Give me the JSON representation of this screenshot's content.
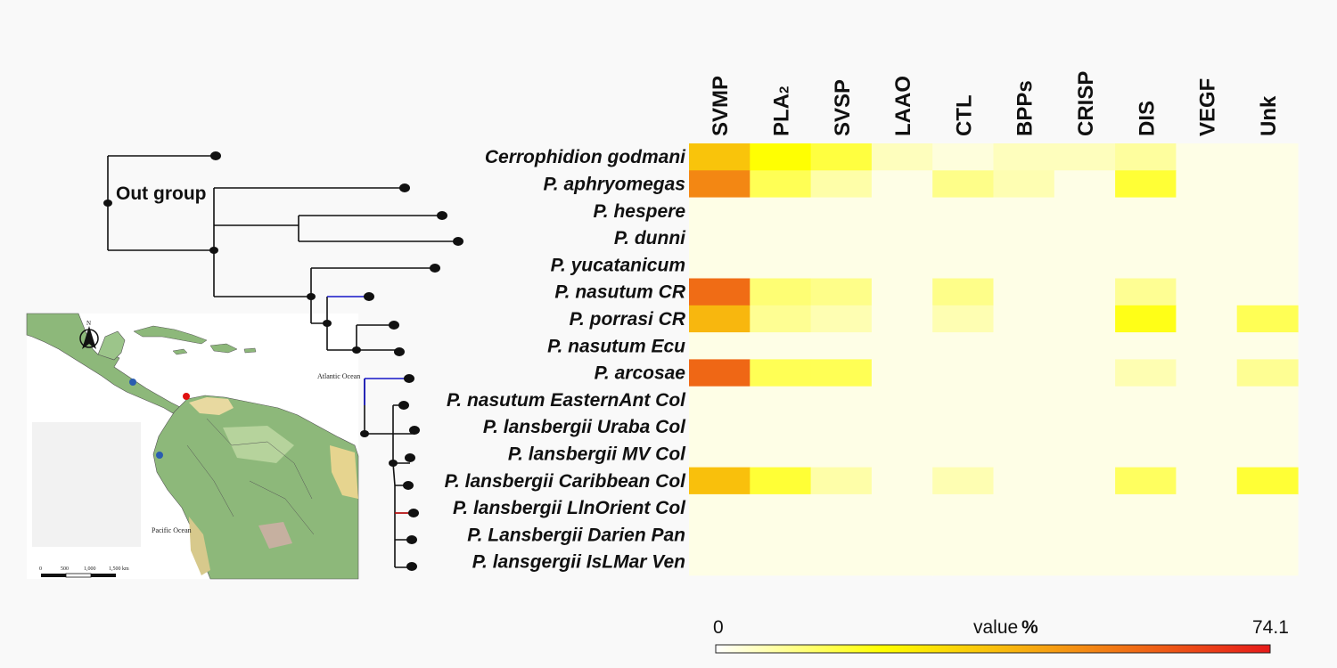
{
  "outgroup_label": "Out group",
  "colors": {
    "scale_low": "#fefee6",
    "scale_mid": "#ffff00",
    "scale_orange": "#f6a012",
    "scale_high": "#e61a1a",
    "tree_black": "#111111",
    "branch_blue": "#1515c8",
    "branch_red": "#d01010",
    "map_sea": "#ffffff",
    "map_land": "#8db87a",
    "map_dry": "#e8d9a0"
  },
  "map": {
    "atlantic_label": "Atlantic Ocean",
    "pacific_label": "Pacific Ocean",
    "north_label": "N",
    "scale_ticks": [
      "0",
      "500",
      "1,000",
      "1,500 km"
    ],
    "points": [
      {
        "color": "#2a5db0"
      },
      {
        "color": "#e01010"
      },
      {
        "color": "#2a5db0"
      }
    ]
  },
  "legend": {
    "min_label": "0",
    "title": "value",
    "unit": "%",
    "max_label": "74.1"
  },
  "chart_data": {
    "type": "heatmap",
    "columns": [
      "SVMP",
      "PLA2",
      "SVSP",
      "LAAO",
      "CTL",
      "BPPs",
      "CRISP",
      "DIS",
      "VEGF",
      "Unk"
    ],
    "column_subscript": {
      "PLA2": "2"
    },
    "rows": [
      "Cerrophidion godmani",
      "P. aphryomegas",
      "P. hespere",
      "P. dunni",
      "P. yucatanicum",
      "P. nasutum CR",
      "P. porrasi CR",
      "P. nasutum Ecu",
      "P. arcosae",
      "P. nasutum EasternAnt Col",
      "P. lansbergii Uraba Col",
      "P. lansbergii MV Col",
      "P. lansbergii Caribbean Col",
      "P. lansbergii LlnOrient Col",
      "P. Lansbergii Darien Pan",
      "P. lansgergii IsLMar Ven"
    ],
    "values": [
      [
        36,
        22,
        16,
        4,
        1,
        4,
        4,
        7,
        0,
        0
      ],
      [
        50,
        14,
        6,
        0,
        9,
        5,
        0,
        17,
        0,
        0
      ],
      [
        0,
        0,
        0,
        0,
        0,
        0,
        0,
        0,
        0,
        0
      ],
      [
        0,
        0,
        0,
        0,
        0,
        0,
        0,
        0,
        0,
        0
      ],
      [
        0,
        0,
        0,
        0,
        0,
        0,
        0,
        0,
        0,
        0
      ],
      [
        56,
        11,
        9,
        0,
        9,
        0,
        0,
        8,
        0,
        0
      ],
      [
        39,
        8,
        5,
        0,
        5,
        0,
        0,
        20,
        0,
        14
      ],
      [
        0,
        0,
        0,
        0,
        0,
        0,
        0,
        0,
        0,
        0
      ],
      [
        57,
        14,
        14,
        0,
        0,
        0,
        0,
        5,
        0,
        8
      ],
      [
        0,
        0,
        0,
        0,
        0,
        0,
        0,
        0,
        0,
        0
      ],
      [
        0,
        0,
        0,
        0,
        0,
        0,
        0,
        0,
        0,
        0
      ],
      [
        0,
        0,
        0,
        0,
        0,
        0,
        0,
        0,
        0,
        0
      ],
      [
        37,
        17,
        6,
        0,
        5,
        0,
        0,
        13,
        0,
        17
      ],
      [
        0,
        0,
        0,
        0,
        0,
        0,
        0,
        0,
        0,
        0
      ],
      [
        0,
        0,
        0,
        0,
        0,
        0,
        0,
        0,
        0,
        0
      ],
      [
        0,
        0,
        0,
        0,
        0,
        0,
        0,
        0,
        0,
        0
      ]
    ],
    "vmin": 0,
    "vmax": 74.1
  }
}
